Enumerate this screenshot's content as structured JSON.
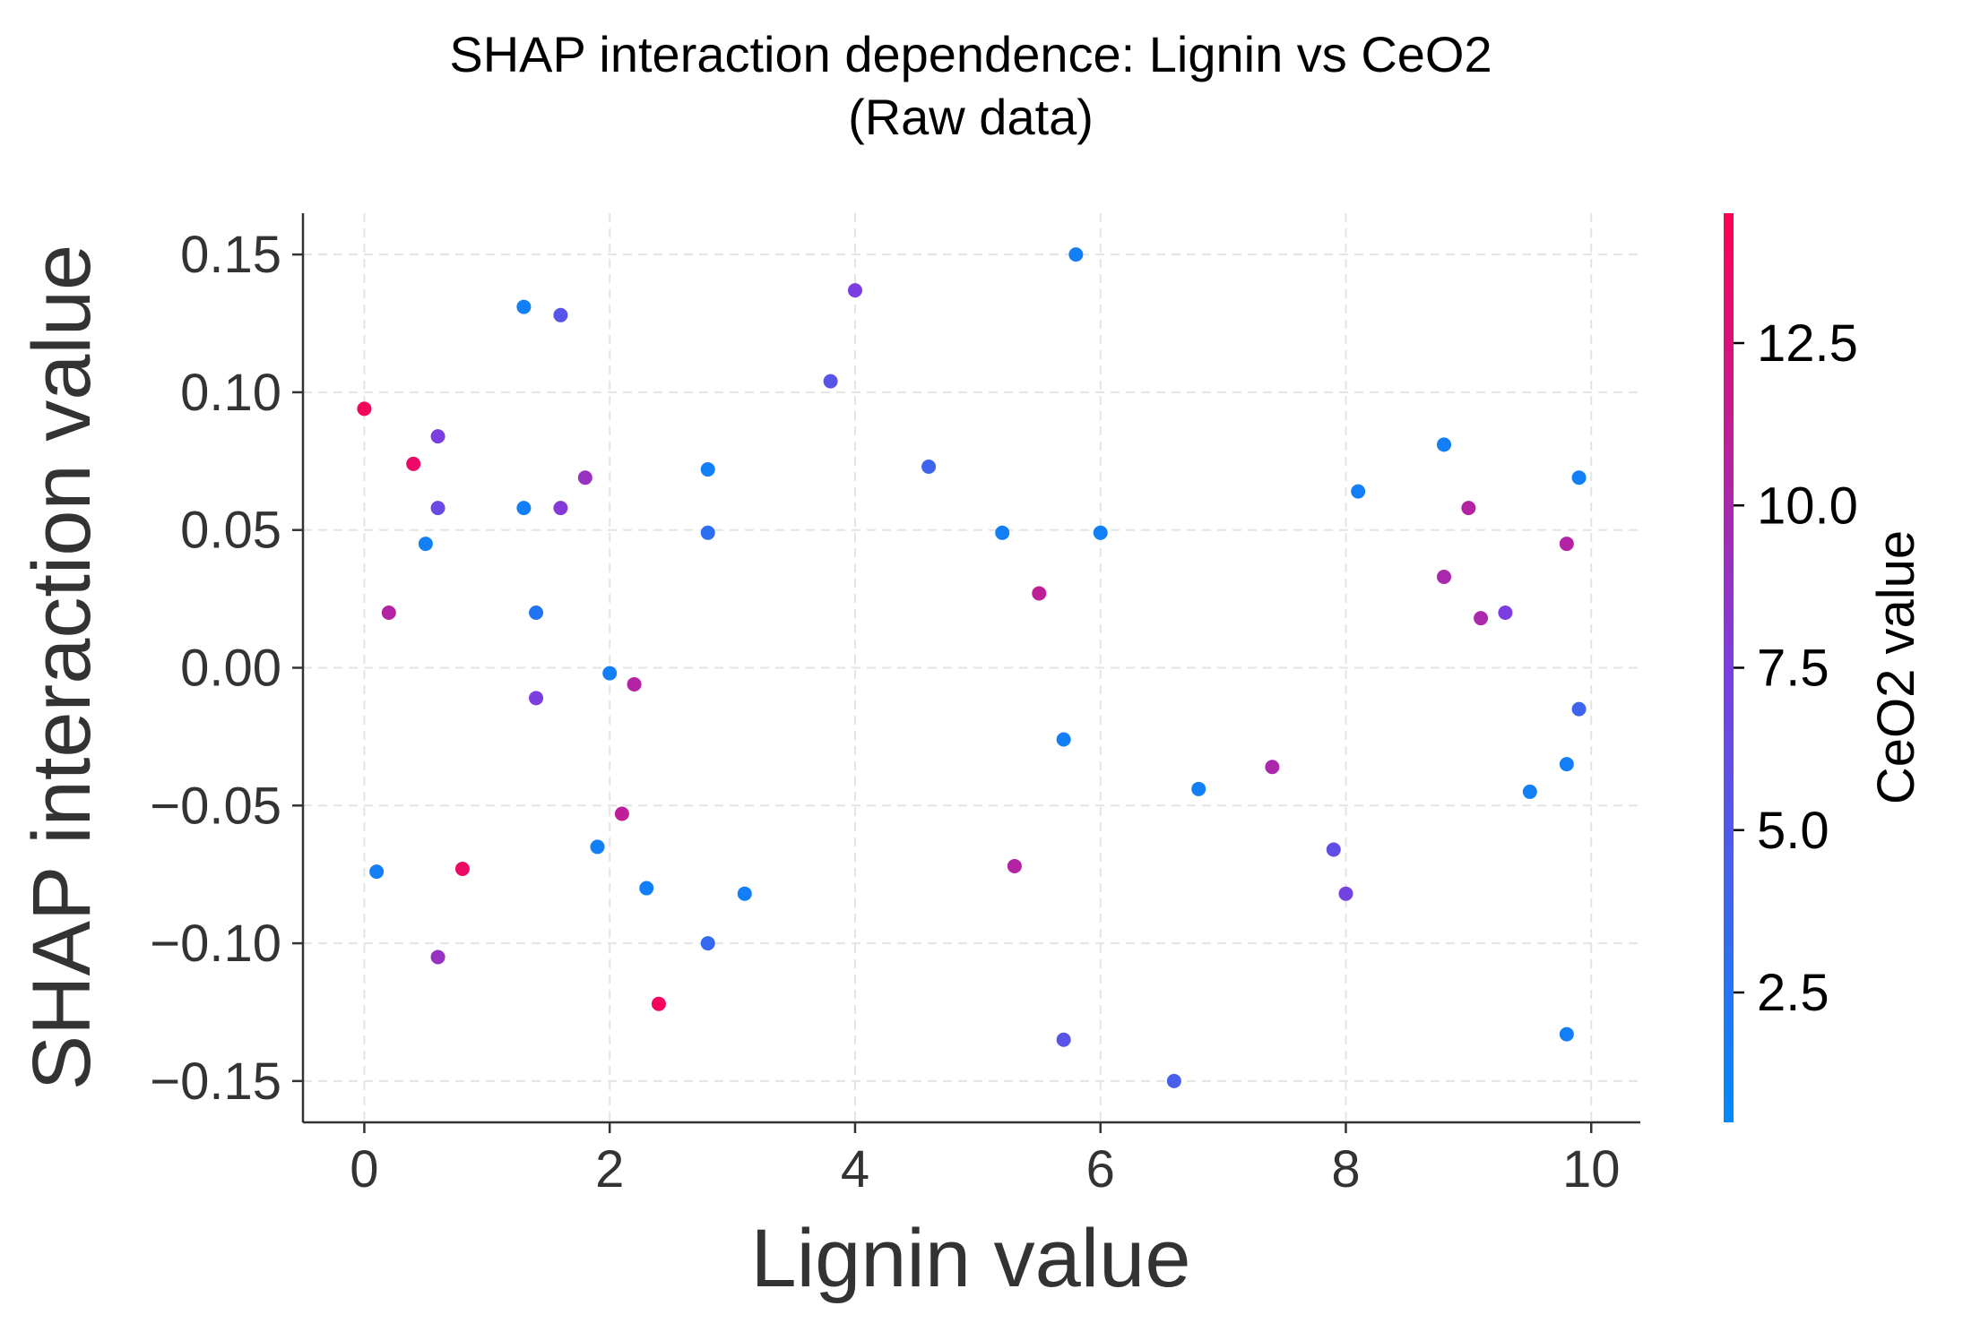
{
  "chart_data": {
    "type": "scatter",
    "title": "SHAP interaction dependence: Lignin vs CeO2",
    "subtitle": "(Raw data)",
    "xlabel": "Lignin value",
    "ylabel": "SHAP interaction value",
    "xlim": [
      -0.5,
      10.4
    ],
    "ylim": [
      -0.165,
      0.165
    ],
    "xticks": [
      0,
      2,
      4,
      6,
      8,
      10
    ],
    "xtick_labels": [
      "0",
      "2",
      "4",
      "6",
      "8",
      "10"
    ],
    "yticks": [
      0.15,
      0.1,
      0.05,
      0.0,
      -0.05,
      -0.1,
      -0.15
    ],
    "ytick_labels": [
      "0.15",
      "0.10",
      "0.05",
      "0.00",
      "−0.05",
      "−0.10",
      "−0.15"
    ],
    "grid": true,
    "colorbar": {
      "label": "CeO2 value",
      "range": [
        0.5,
        14.5
      ],
      "ticks": [
        2.5,
        5.0,
        7.5,
        10.0,
        12.5
      ],
      "tick_labels": [
        "2.5",
        "5.0",
        "7.5",
        "10.0",
        "12.5"
      ],
      "color_low": "#008afb",
      "color_mid": "#7c3ee0",
      "color_high": "#ff0052"
    },
    "points": [
      {
        "x": 0.0,
        "y": 0.094,
        "c": 14.0
      },
      {
        "x": 0.1,
        "y": -0.074,
        "c": 1.5
      },
      {
        "x": 0.2,
        "y": 0.02,
        "c": 10.5
      },
      {
        "x": 0.4,
        "y": 0.074,
        "c": 13.5
      },
      {
        "x": 0.5,
        "y": 0.045,
        "c": 1.5
      },
      {
        "x": 0.6,
        "y": 0.084,
        "c": 7.5
      },
      {
        "x": 0.6,
        "y": 0.058,
        "c": 6.5
      },
      {
        "x": 0.6,
        "y": -0.105,
        "c": 9.0
      },
      {
        "x": 0.8,
        "y": -0.073,
        "c": 13.5
      },
      {
        "x": 1.3,
        "y": 0.131,
        "c": 1.5
      },
      {
        "x": 1.3,
        "y": 0.058,
        "c": 1.5
      },
      {
        "x": 1.4,
        "y": 0.02,
        "c": 2.5
      },
      {
        "x": 1.4,
        "y": -0.011,
        "c": 7.5
      },
      {
        "x": 1.6,
        "y": 0.128,
        "c": 5.5
      },
      {
        "x": 1.6,
        "y": 0.058,
        "c": 8.0
      },
      {
        "x": 1.8,
        "y": 0.069,
        "c": 9.0
      },
      {
        "x": 1.9,
        "y": -0.065,
        "c": 1.5
      },
      {
        "x": 2.0,
        "y": -0.002,
        "c": 1.5
      },
      {
        "x": 2.1,
        "y": -0.053,
        "c": 11.0
      },
      {
        "x": 2.2,
        "y": -0.006,
        "c": 10.5
      },
      {
        "x": 2.3,
        "y": -0.08,
        "c": 1.5
      },
      {
        "x": 2.4,
        "y": -0.122,
        "c": 14.0
      },
      {
        "x": 2.8,
        "y": 0.072,
        "c": 1.5
      },
      {
        "x": 2.8,
        "y": 0.049,
        "c": 3.0
      },
      {
        "x": 2.8,
        "y": -0.1,
        "c": 3.5
      },
      {
        "x": 3.1,
        "y": -0.082,
        "c": 1.5
      },
      {
        "x": 3.8,
        "y": 0.104,
        "c": 5.5
      },
      {
        "x": 4.0,
        "y": 0.137,
        "c": 7.5
      },
      {
        "x": 4.6,
        "y": 0.073,
        "c": 4.0
      },
      {
        "x": 5.2,
        "y": 0.049,
        "c": 1.5
      },
      {
        "x": 5.3,
        "y": -0.072,
        "c": 10.5
      },
      {
        "x": 5.5,
        "y": 0.027,
        "c": 11.0
      },
      {
        "x": 5.7,
        "y": -0.026,
        "c": 1.5
      },
      {
        "x": 5.7,
        "y": -0.135,
        "c": 5.5
      },
      {
        "x": 5.8,
        "y": 0.15,
        "c": 1.5
      },
      {
        "x": 6.0,
        "y": 0.049,
        "c": 1.5
      },
      {
        "x": 6.6,
        "y": -0.15,
        "c": 4.5
      },
      {
        "x": 6.8,
        "y": -0.044,
        "c": 1.5
      },
      {
        "x": 7.4,
        "y": -0.036,
        "c": 10.0
      },
      {
        "x": 7.9,
        "y": -0.066,
        "c": 6.0
      },
      {
        "x": 8.0,
        "y": -0.082,
        "c": 7.0
      },
      {
        "x": 8.1,
        "y": 0.064,
        "c": 1.5
      },
      {
        "x": 8.8,
        "y": 0.081,
        "c": 1.5
      },
      {
        "x": 8.8,
        "y": 0.033,
        "c": 10.0
      },
      {
        "x": 9.0,
        "y": 0.058,
        "c": 10.5
      },
      {
        "x": 9.1,
        "y": 0.018,
        "c": 10.0
      },
      {
        "x": 9.3,
        "y": 0.02,
        "c": 7.5
      },
      {
        "x": 9.5,
        "y": -0.045,
        "c": 1.5
      },
      {
        "x": 9.8,
        "y": 0.045,
        "c": 10.5
      },
      {
        "x": 9.8,
        "y": -0.035,
        "c": 1.5
      },
      {
        "x": 9.8,
        "y": -0.133,
        "c": 1.5
      },
      {
        "x": 9.9,
        "y": 0.069,
        "c": 1.5
      },
      {
        "x": 9.9,
        "y": -0.015,
        "c": 4.0
      }
    ]
  }
}
